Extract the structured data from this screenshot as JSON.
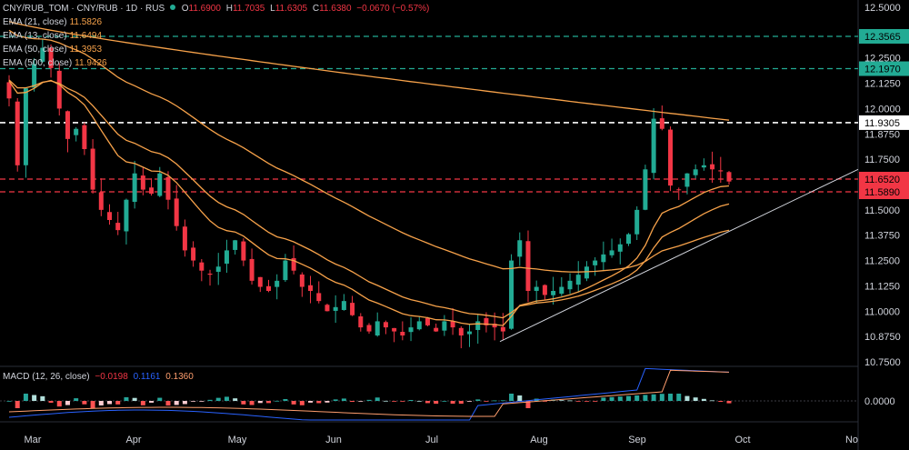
{
  "header": {
    "symbol": "CNY/RUB_TOM · CNY/RUB · 1D · RUS",
    "open_label": "O",
    "open": "11.6900",
    "high_label": "H",
    "high": "11.7035",
    "low_label": "L",
    "low": "11.6305",
    "close_label": "C",
    "close": "11.6380",
    "change": "−0.0670 (−0.57%)"
  },
  "indicators": [
    {
      "label": "EMA (21, close)",
      "value": "11.5826",
      "color": "#f7a24a"
    },
    {
      "label": "EMA (13, close)",
      "value": "11.6494",
      "color": "#f7a24a"
    },
    {
      "label": "EMA (50, close)",
      "value": "11.3953",
      "color": "#f7a24a"
    },
    {
      "label": "EMA (500, close)",
      "value": "11.9426",
      "color": "#f7a24a"
    }
  ],
  "macd_legend": {
    "label": "MACD (12, 26, close)",
    "hist": "−0.0198",
    "macd": "0.1161",
    "signal": "0.1360",
    "hist_color": "#f23645",
    "macd_color": "#2962ff",
    "signal_color": "#ff9e6e"
  },
  "colors": {
    "up": "#22ab94",
    "down": "#f23645",
    "ema": "#f7a24a",
    "background": "#000000"
  },
  "chart_data": {
    "type": "candlestick",
    "symbol": "CNY/RUB_TOM",
    "timeframe": "1D",
    "x_ticks": [
      "Mar",
      "Apr",
      "May",
      "Jun",
      "Jul",
      "Aug",
      "Sep",
      "Oct",
      "No"
    ],
    "y_ticks": [
      "12.5000",
      "12.3750",
      "12.2500",
      "12.1250",
      "12.0000",
      "11.8750",
      "11.7500",
      "11.6250",
      "11.5000",
      "11.3750",
      "11.2500",
      "11.1250",
      "11.0000",
      "10.8750",
      "10.7500"
    ],
    "y_tick_values": [
      12.5,
      12.375,
      12.25,
      12.125,
      12.0,
      11.875,
      11.75,
      11.625,
      11.5,
      11.375,
      11.25,
      11.125,
      11.0,
      10.875,
      10.75
    ],
    "ylim": [
      10.73,
      12.53
    ],
    "price_levels": [
      {
        "value": 12.3565,
        "label": "12.3565",
        "color": "#22ab94",
        "style": "dashed"
      },
      {
        "value": 12.197,
        "label": "12.1970",
        "color": "#22ab94",
        "style": "dashed"
      },
      {
        "value": 11.9305,
        "label": "11.9305",
        "color": "#ffffff",
        "style": "dashed"
      },
      {
        "value": 11.652,
        "label": "11.6520",
        "color": "#f23645",
        "style": "dashed"
      },
      {
        "value": 11.589,
        "label": "11.5890",
        "color": "#f23645",
        "style": "dashed"
      }
    ],
    "trendline": {
      "start": [
        "2023-07-24",
        10.85
      ],
      "end": [
        "2023-10-02",
        11.7
      ]
    },
    "close_series": [
      12.05,
      11.72,
      12.1,
      12.22,
      12.3,
      12.2,
      12.0,
      11.85,
      11.9,
      11.8,
      11.6,
      11.5,
      11.45,
      11.4,
      11.55,
      11.68,
      11.6,
      11.58,
      11.68,
      11.55,
      11.42,
      11.3,
      11.25,
      11.2,
      11.18,
      11.22,
      11.3,
      11.35,
      11.25,
      11.15,
      11.12,
      11.1,
      11.15,
      11.25,
      11.2,
      11.12,
      11.1,
      11.05,
      11.0,
      11.02,
      11.05,
      10.98,
      10.92,
      10.9,
      10.95,
      10.92,
      10.9,
      10.88,
      10.92,
      10.95,
      10.93,
      10.9,
      10.95,
      10.92,
      10.88,
      10.9,
      10.95,
      10.93,
      10.92,
      10.9,
      11.25,
      11.35,
      11.1,
      11.12,
      11.08,
      11.1,
      11.12,
      11.15,
      11.18,
      11.22,
      11.25,
      11.28,
      11.3,
      11.33,
      11.38,
      11.5,
      11.7,
      11.95,
      11.9,
      11.62,
      11.6,
      11.68,
      11.7,
      11.72,
      11.7,
      11.69,
      11.64
    ],
    "ema_13_last": 11.6494,
    "ema_21_last": 11.5826,
    "ema_50_last": 11.3953,
    "ema_500_last": 11.9426,
    "macd_zero_label": "0.0000"
  }
}
